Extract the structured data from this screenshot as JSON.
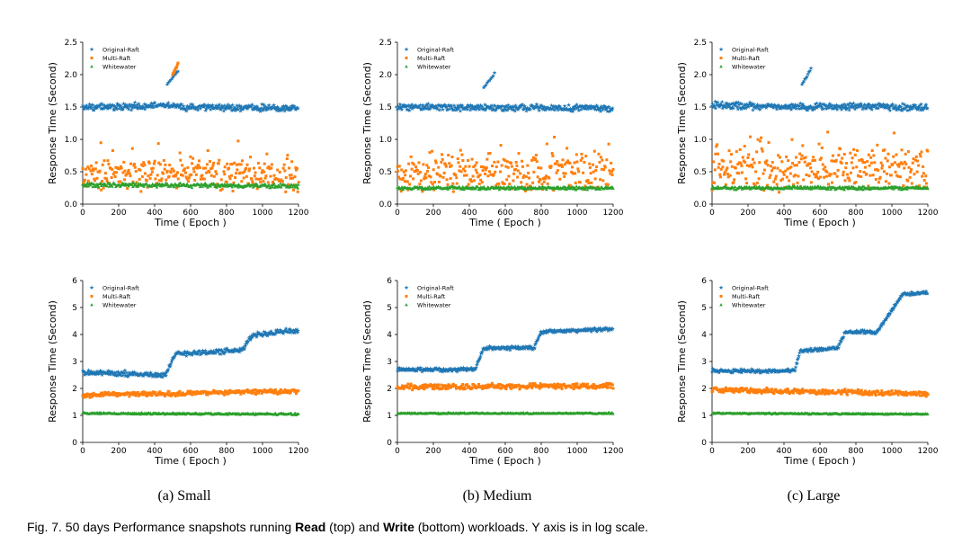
{
  "figure": {
    "caption": {
      "prefix": "Fig. 7. 50 days Performance snapshots running ",
      "read_word": "Read",
      "read_suffix": " (top) and ",
      "write_word": "Write",
      "write_suffix": " (bottom) workloads. Y axis is in log scale."
    },
    "subcaptions": [
      "(a) Small",
      "(b) Medium",
      "(c) Large"
    ]
  },
  "colors": {
    "Original-Raft": "#1f77b4",
    "Multi-Raft": "#ff7f0e",
    "Whitewater": "#2ca02c"
  },
  "chart_data": [
    {
      "type": "scatter",
      "panel": "read-small",
      "xlabel": "Time ( Epoch )",
      "ylabel": "Response Time (Second)",
      "xlim": [
        0,
        1200
      ],
      "ylim": [
        0,
        2.5
      ],
      "xticks": [
        "0",
        "200",
        "400",
        "600",
        "800",
        "1000",
        "1200"
      ],
      "yticks": [
        "0.0",
        "0.5",
        "1.0",
        "1.5",
        "2.0",
        "2.5"
      ],
      "legend": [
        "Original-Raft",
        "Multi-Raft",
        "Whitewater"
      ],
      "series": [
        {
          "name": "Original-Raft",
          "marker": "star",
          "segments": [
            [
              0,
              1.5
            ],
            [
              480,
              1.52
            ],
            [
              530,
              1.5
            ],
            [
              1200,
              1.48
            ]
          ],
          "spread": 0.06,
          "spike": {
            "x_range": [
              470,
              530
            ],
            "y_range": [
              1.85,
              2.1
            ]
          }
        },
        {
          "name": "Multi-Raft",
          "marker": "square",
          "segments": [
            [
              0,
              0.45
            ],
            [
              1200,
              0.45
            ]
          ],
          "spread": 0.3,
          "spike": {
            "x_range": [
              500,
              530
            ],
            "y_range": [
              2.0,
              2.18
            ]
          }
        },
        {
          "name": "Whitewater",
          "marker": "triangle",
          "segments": [
            [
              0,
              0.3
            ],
            [
              1200,
              0.28
            ]
          ],
          "spread": 0.04
        }
      ]
    },
    {
      "type": "scatter",
      "panel": "read-medium",
      "xlabel": "Time ( Epoch )",
      "ylabel": "Response Time (Second)",
      "xlim": [
        0,
        1200
      ],
      "ylim": [
        0,
        2.5
      ],
      "xticks": [
        "0",
        "200",
        "400",
        "600",
        "800",
        "1000",
        "1200"
      ],
      "yticks": [
        "0.0",
        "0.5",
        "1.0",
        "1.5",
        "2.0",
        "2.5"
      ],
      "legend": [
        "Original-Raft",
        "Multi-Raft",
        "Whitewater"
      ],
      "series": [
        {
          "name": "Original-Raft",
          "marker": "star",
          "segments": [
            [
              0,
              1.5
            ],
            [
              1200,
              1.48
            ]
          ],
          "spread": 0.06,
          "spike": {
            "x_range": [
              480,
              540
            ],
            "y_range": [
              1.8,
              2.05
            ]
          }
        },
        {
          "name": "Multi-Raft",
          "marker": "square",
          "segments": [
            [
              0,
              0.5
            ],
            [
              1200,
              0.5
            ]
          ],
          "spread": 0.35
        },
        {
          "name": "Whitewater",
          "marker": "triangle",
          "segments": [
            [
              0,
              0.25
            ],
            [
              1200,
              0.25
            ]
          ],
          "spread": 0.03
        }
      ]
    },
    {
      "type": "scatter",
      "panel": "read-large",
      "xlabel": "Time ( Epoch )",
      "ylabel": "Response Time (Second)",
      "xlim": [
        0,
        1200
      ],
      "ylim": [
        0,
        2.5
      ],
      "xticks": [
        "0",
        "200",
        "400",
        "600",
        "800",
        "1000",
        "1200"
      ],
      "yticks": [
        "0.0",
        "0.5",
        "1.0",
        "1.5",
        "2.0",
        "2.5"
      ],
      "legend": [
        "Original-Raft",
        "Multi-Raft",
        "Whitewater"
      ],
      "series": [
        {
          "name": "Original-Raft",
          "marker": "star",
          "segments": [
            [
              0,
              1.52
            ],
            [
              1200,
              1.5
            ]
          ],
          "spread": 0.07,
          "spike": {
            "x_range": [
              500,
              550
            ],
            "y_range": [
              1.85,
              2.1
            ]
          }
        },
        {
          "name": "Multi-Raft",
          "marker": "square",
          "segments": [
            [
              0,
              0.55
            ],
            [
              1200,
              0.55
            ]
          ],
          "spread": 0.4
        },
        {
          "name": "Whitewater",
          "marker": "triangle",
          "segments": [
            [
              0,
              0.25
            ],
            [
              1200,
              0.25
            ]
          ],
          "spread": 0.03
        }
      ]
    },
    {
      "type": "scatter",
      "panel": "write-small",
      "xlabel": "Time ( Epoch )",
      "ylabel": "Response Time (Second)",
      "xlim": [
        0,
        1200
      ],
      "ylim": [
        0,
        6
      ],
      "xticks": [
        "0",
        "200",
        "400",
        "600",
        "800",
        "1000",
        "1200"
      ],
      "yticks": [
        "0",
        "1",
        "2",
        "3",
        "4",
        "5",
        "6"
      ],
      "legend": [
        "Original-Raft",
        "Multi-Raft",
        "Whitewater"
      ],
      "series": [
        {
          "name": "Original-Raft",
          "marker": "star",
          "segments": [
            [
              0,
              2.6
            ],
            [
              460,
              2.5
            ],
            [
              520,
              3.3
            ],
            [
              880,
              3.4
            ],
            [
              950,
              4.0
            ],
            [
              1200,
              4.15
            ]
          ],
          "spread": 0.12
        },
        {
          "name": "Multi-Raft",
          "marker": "square",
          "segments": [
            [
              0,
              1.75
            ],
            [
              1200,
              1.9
            ]
          ],
          "spread": 0.1
        },
        {
          "name": "Whitewater",
          "marker": "triangle",
          "segments": [
            [
              0,
              1.08
            ],
            [
              1200,
              1.05
            ]
          ],
          "spread": 0.04
        }
      ]
    },
    {
      "type": "scatter",
      "panel": "write-medium",
      "xlabel": "Time ( Epoch )",
      "ylabel": "Response Time (Second)",
      "xlim": [
        0,
        1200
      ],
      "ylim": [
        0,
        6
      ],
      "xticks": [
        "0",
        "200",
        "400",
        "600",
        "800",
        "1000",
        "1200"
      ],
      "yticks": [
        "0",
        "1",
        "2",
        "3",
        "4",
        "5",
        "6"
      ],
      "legend": [
        "Original-Raft",
        "Multi-Raft",
        "Whitewater"
      ],
      "series": [
        {
          "name": "Original-Raft",
          "marker": "star",
          "segments": [
            [
              0,
              2.7
            ],
            [
              430,
              2.7
            ],
            [
              480,
              3.5
            ],
            [
              760,
              3.5
            ],
            [
              800,
              4.1
            ],
            [
              1200,
              4.2
            ]
          ],
          "spread": 0.08
        },
        {
          "name": "Multi-Raft",
          "marker": "square",
          "segments": [
            [
              0,
              2.05
            ],
            [
              1200,
              2.1
            ]
          ],
          "spread": 0.12
        },
        {
          "name": "Whitewater",
          "marker": "triangle",
          "segments": [
            [
              0,
              1.08
            ],
            [
              1200,
              1.08
            ]
          ],
          "spread": 0.03
        }
      ]
    },
    {
      "type": "scatter",
      "panel": "write-large",
      "xlabel": "Time ( Epoch )",
      "ylabel": "Response Time (Second)",
      "xlim": [
        0,
        1200
      ],
      "ylim": [
        0,
        6
      ],
      "xticks": [
        "0",
        "200",
        "400",
        "600",
        "800",
        "1000",
        "1200"
      ],
      "yticks": [
        "0",
        "1",
        "2",
        "3",
        "4",
        "5",
        "6"
      ],
      "legend": [
        "Original-Raft",
        "Multi-Raft",
        "Whitewater"
      ],
      "series": [
        {
          "name": "Original-Raft",
          "marker": "star",
          "segments": [
            [
              0,
              2.65
            ],
            [
              460,
              2.65
            ],
            [
              490,
              3.4
            ],
            [
              700,
              3.5
            ],
            [
              740,
              4.1
            ],
            [
              920,
              4.1
            ],
            [
              1060,
              5.5
            ],
            [
              1200,
              5.55
            ]
          ],
          "spread": 0.08
        },
        {
          "name": "Multi-Raft",
          "marker": "square",
          "segments": [
            [
              0,
              1.95
            ],
            [
              1200,
              1.8
            ]
          ],
          "spread": 0.12
        },
        {
          "name": "Whitewater",
          "marker": "triangle",
          "segments": [
            [
              0,
              1.08
            ],
            [
              1200,
              1.05
            ]
          ],
          "spread": 0.03
        }
      ]
    }
  ]
}
